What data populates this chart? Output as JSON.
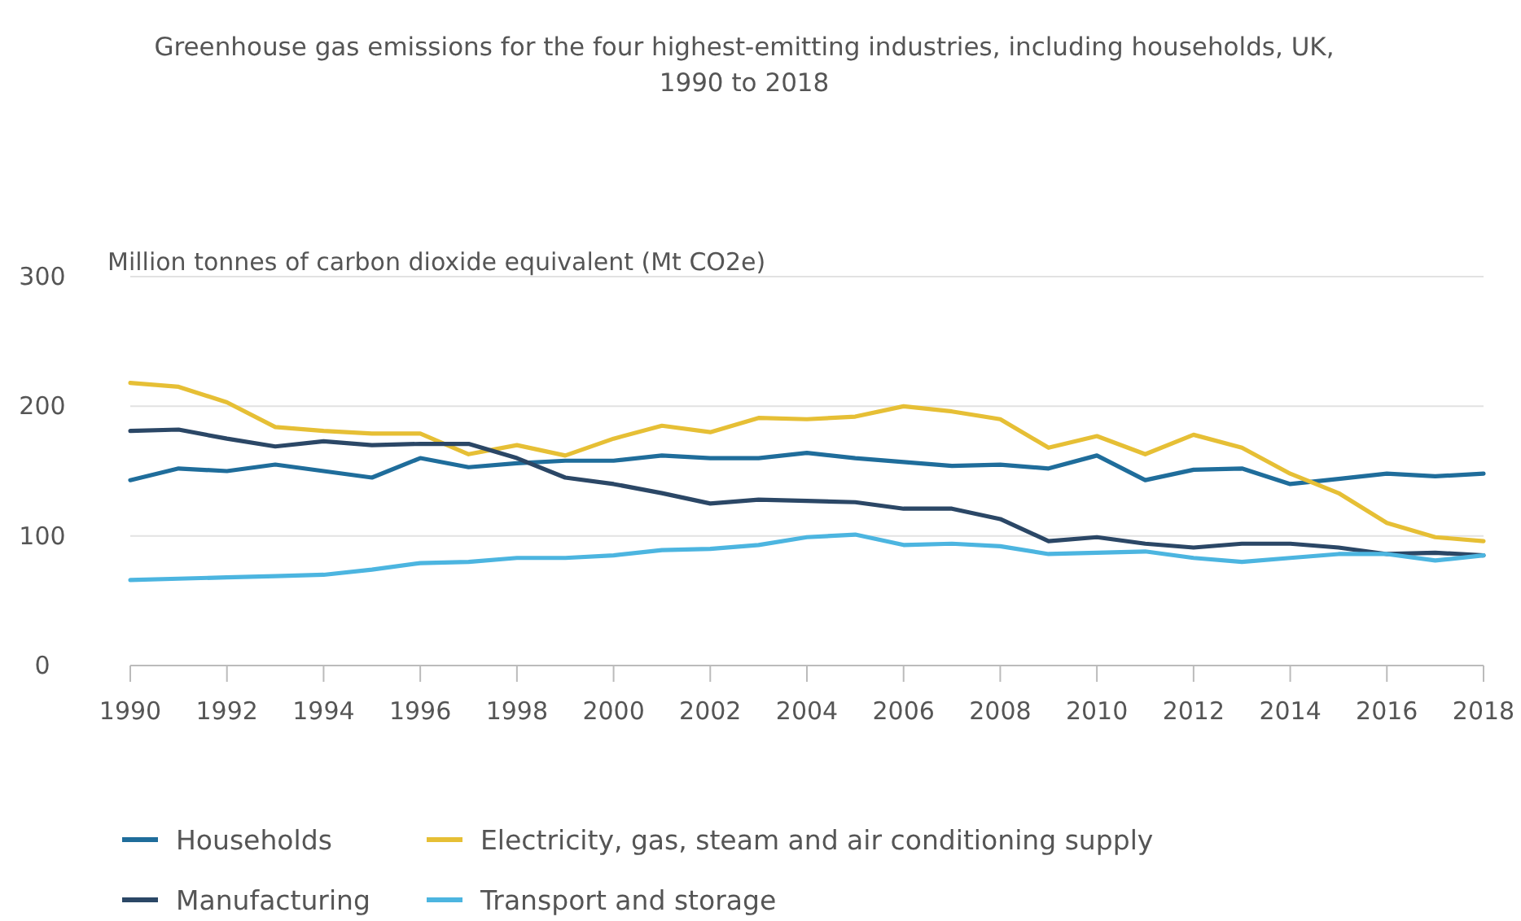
{
  "chart_data": {
    "type": "line",
    "title": "Greenhouse gas emissions for the four highest-emitting industries, including households, UK, 1990 to 2018",
    "ylabel": "Million tonnes of carbon dioxide equivalent (Mt CO2e)",
    "x": [
      1990,
      1991,
      1992,
      1993,
      1994,
      1995,
      1996,
      1997,
      1998,
      1999,
      2000,
      2001,
      2002,
      2003,
      2004,
      2005,
      2006,
      2007,
      2008,
      2009,
      2010,
      2011,
      2012,
      2013,
      2014,
      2015,
      2016,
      2017,
      2018
    ],
    "series": [
      {
        "name": "Households",
        "color": "#1f6d9b",
        "values": [
          143,
          152,
          150,
          155,
          150,
          145,
          160,
          153,
          156,
          158,
          158,
          162,
          160,
          160,
          164,
          160,
          157,
          154,
          155,
          152,
          162,
          143,
          151,
          152,
          140,
          144,
          148,
          146,
          148
        ]
      },
      {
        "name": "Electricity, gas, steam and air conditioning supply",
        "color": "#e6bf35",
        "values": [
          218,
          215,
          203,
          184,
          181,
          179,
          179,
          163,
          170,
          162,
          175,
          185,
          180,
          191,
          190,
          192,
          200,
          196,
          190,
          168,
          177,
          163,
          178,
          168,
          148,
          133,
          110,
          99,
          96
        ]
      },
      {
        "name": "Manufacturing",
        "color": "#2b4766",
        "values": [
          181,
          182,
          175,
          169,
          173,
          170,
          171,
          171,
          160,
          145,
          140,
          133,
          125,
          128,
          127,
          126,
          121,
          121,
          113,
          96,
          99,
          94,
          91,
          94,
          94,
          91,
          86,
          87,
          85
        ]
      },
      {
        "name": "Transport and storage",
        "color": "#4cb5e0",
        "values": [
          66,
          67,
          68,
          69,
          70,
          74,
          79,
          80,
          83,
          83,
          85,
          89,
          90,
          93,
          99,
          101,
          93,
          94,
          92,
          86,
          87,
          88,
          83,
          80,
          83,
          86,
          86,
          81,
          85
        ]
      }
    ],
    "xlim": [
      1990,
      2018
    ],
    "xticks": [
      1990,
      1992,
      1994,
      1996,
      1998,
      2000,
      2002,
      2004,
      2006,
      2008,
      2010,
      2012,
      2014,
      2016,
      2018
    ],
    "ylim": [
      0,
      300
    ],
    "yticks": [
      0,
      100,
      200,
      300
    ],
    "grid": "y",
    "legend": "bottom",
    "marker": "none",
    "line_style": "solid"
  }
}
